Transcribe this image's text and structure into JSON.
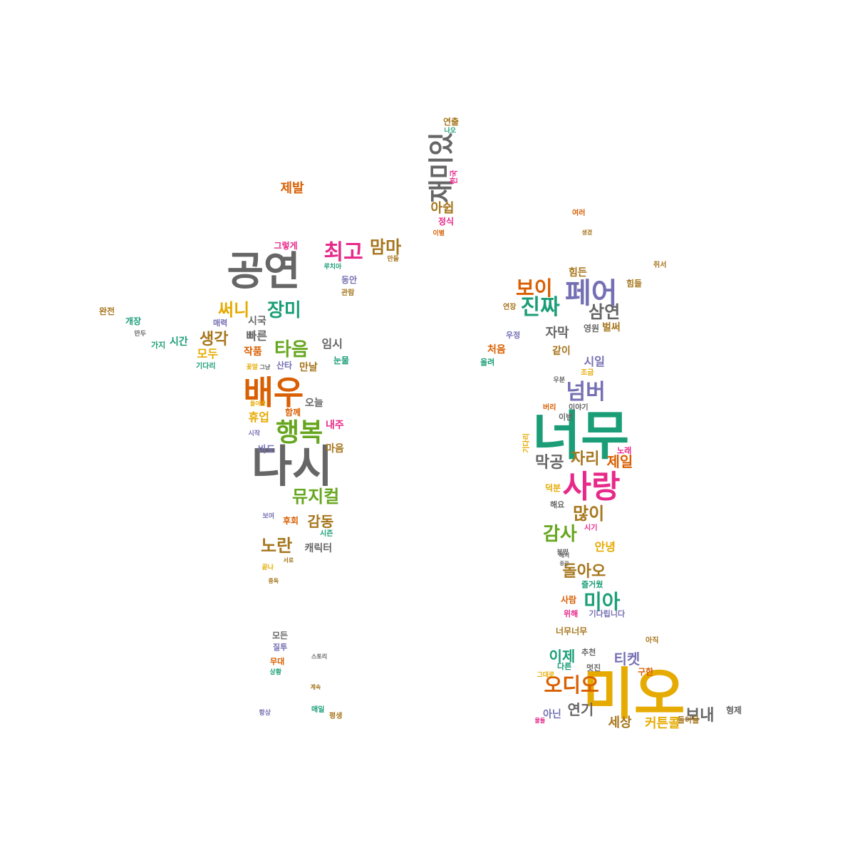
{
  "palette": {
    "teal": "#1b9e77",
    "orange": "#d95f02",
    "purple": "#7570b3",
    "pink": "#e7298a",
    "green": "#66a61e",
    "gold": "#e6ab02",
    "brown": "#a6761d",
    "gray": "#666666"
  },
  "words": [
    {
      "text": "미오",
      "color": "gold"
    },
    {
      "text": "너무",
      "color": "teal"
    },
    {
      "text": "다시",
      "color": "gray"
    },
    {
      "text": "공연",
      "color": "gray"
    },
    {
      "text": "배우",
      "color": "orange"
    },
    {
      "text": "사랑",
      "color": "pink"
    },
    {
      "text": "행복",
      "color": "green"
    },
    {
      "text": "페어",
      "color": "purple"
    },
    {
      "text": "재미있",
      "color": "gray"
    },
    {
      "text": "최고",
      "color": "pink"
    },
    {
      "text": "진짜",
      "color": "teal"
    },
    {
      "text": "보이",
      "color": "orange"
    },
    {
      "text": "삼연",
      "color": "gray"
    },
    {
      "text": "넘버",
      "color": "purple"
    },
    {
      "text": "뮤지컬",
      "color": "green"
    },
    {
      "text": "오디오",
      "color": "orange"
    },
    {
      "text": "미아",
      "color": "teal"
    },
    {
      "text": "감사",
      "color": "green"
    },
    {
      "text": "맘마",
      "color": "brown"
    },
    {
      "text": "써니",
      "color": "gold"
    },
    {
      "text": "장미",
      "color": "teal"
    },
    {
      "text": "타음",
      "color": "green"
    },
    {
      "text": "생각",
      "color": "brown"
    },
    {
      "text": "막공",
      "color": "gray"
    },
    {
      "text": "자리",
      "color": "brown"
    },
    {
      "text": "제일",
      "color": "orange"
    },
    {
      "text": "많이",
      "color": "brown"
    },
    {
      "text": "노란",
      "color": "brown"
    },
    {
      "text": "감동",
      "color": "brown"
    },
    {
      "text": "돌아오",
      "color": "brown"
    },
    {
      "text": "연기",
      "color": "gray"
    },
    {
      "text": "보내",
      "color": "gray"
    },
    {
      "text": "이제",
      "color": "teal"
    },
    {
      "text": "티켓",
      "color": "purple"
    },
    {
      "text": "세상",
      "color": "brown"
    },
    {
      "text": "커튼콜",
      "color": "gold"
    },
    {
      "text": "아닌",
      "color": "purple"
    },
    {
      "text": "제발",
      "color": "orange"
    },
    {
      "text": "아쉽",
      "color": "brown"
    },
    {
      "text": "휴업",
      "color": "gold"
    },
    {
      "text": "모두",
      "color": "gold"
    },
    {
      "text": "자막",
      "color": "gray"
    },
    {
      "text": "안녕",
      "color": "gold"
    },
    {
      "text": "시일",
      "color": "purple"
    },
    {
      "text": "임시",
      "color": "gray"
    },
    {
      "text": "만날",
      "color": "brown"
    },
    {
      "text": "내주",
      "color": "pink"
    },
    {
      "text": "마음",
      "color": "brown"
    },
    {
      "text": "오늘",
      "color": "gray"
    },
    {
      "text": "함께",
      "color": "orange"
    },
    {
      "text": "처음",
      "color": "orange"
    },
    {
      "text": "같이",
      "color": "brown"
    },
    {
      "text": "벌써",
      "color": "brown"
    },
    {
      "text": "영원",
      "color": "gray"
    },
    {
      "text": "힘든",
      "color": "brown"
    },
    {
      "text": "힘들",
      "color": "brown"
    },
    {
      "text": "캐릭터",
      "color": "gray"
    },
    {
      "text": "빠른",
      "color": "gray"
    },
    {
      "text": "작품",
      "color": "orange"
    },
    {
      "text": "시간",
      "color": "teal"
    },
    {
      "text": "개장",
      "color": "teal"
    },
    {
      "text": "완전",
      "color": "brown"
    },
    {
      "text": "가지",
      "color": "teal"
    },
    {
      "text": "매력",
      "color": "purple"
    },
    {
      "text": "시국",
      "color": "gray"
    },
    {
      "text": "눈물",
      "color": "teal"
    },
    {
      "text": "산타",
      "color": "purple"
    },
    {
      "text": "정식",
      "color": "pink"
    },
    {
      "text": "연출",
      "color": "brown"
    },
    {
      "text": "그렇게",
      "color": "pink"
    },
    {
      "text": "동안",
      "color": "purple"
    },
    {
      "text": "관람",
      "color": "brown"
    },
    {
      "text": "해요",
      "color": "gray"
    },
    {
      "text": "덕분",
      "color": "gold"
    },
    {
      "text": "노래",
      "color": "pink"
    },
    {
      "text": "시기",
      "color": "pink"
    },
    {
      "text": "이야기",
      "color": "gray"
    },
    {
      "text": "이번",
      "color": "gray"
    },
    {
      "text": "버리",
      "color": "orange"
    },
    {
      "text": "사람",
      "color": "orange"
    },
    {
      "text": "위해",
      "color": "pink"
    },
    {
      "text": "기다립니다",
      "color": "purple"
    },
    {
      "text": "즐거웠",
      "color": "teal"
    },
    {
      "text": "너무너무",
      "color": "brown"
    },
    {
      "text": "추천",
      "color": "gray"
    },
    {
      "text": "다른",
      "color": "teal"
    },
    {
      "text": "멋진",
      "color": "gray"
    },
    {
      "text": "구한",
      "color": "orange"
    },
    {
      "text": "아직",
      "color": "brown"
    },
    {
      "text": "형제",
      "color": "gray"
    },
    {
      "text": "돌아올",
      "color": "brown"
    },
    {
      "text": "후회",
      "color": "orange"
    },
    {
      "text": "시즌",
      "color": "teal"
    },
    {
      "text": "모든",
      "color": "gray"
    },
    {
      "text": "질투",
      "color": "purple"
    },
    {
      "text": "무대",
      "color": "orange"
    },
    {
      "text": "상황",
      "color": "teal"
    },
    {
      "text": "매일",
      "color": "teal"
    },
    {
      "text": "평생",
      "color": "brown"
    },
    {
      "text": "항상",
      "color": "purple"
    },
    {
      "text": "바도",
      "color": "purple"
    },
    {
      "text": "시작",
      "color": "purple"
    },
    {
      "text": "보여",
      "color": "purple"
    },
    {
      "text": "끝나",
      "color": "gold"
    },
    {
      "text": "중독",
      "color": "brown"
    },
    {
      "text": "서로",
      "color": "brown"
    },
    {
      "text": "스토리",
      "color": "gray"
    },
    {
      "text": "계속",
      "color": "brown"
    },
    {
      "text": "기다리",
      "color": "teal"
    },
    {
      "text": "우정",
      "color": "purple"
    },
    {
      "text": "연장",
      "color": "brown"
    },
    {
      "text": "올려",
      "color": "teal"
    },
    {
      "text": "우분",
      "color": "gray"
    },
    {
      "text": "조금",
      "color": "gold"
    },
    {
      "text": "여러",
      "color": "orange"
    },
    {
      "text": "생겼",
      "color": "brown"
    },
    {
      "text": "만두",
      "color": "gray"
    },
    {
      "text": "나오",
      "color": "teal"
    },
    {
      "text": "이별",
      "color": "orange"
    },
    {
      "text": "꽃말",
      "color": "gold"
    },
    {
      "text": "그냥",
      "color": "gray"
    },
    {
      "text": "만들",
      "color": "brown"
    },
    {
      "text": "루치아",
      "color": "teal"
    },
    {
      "text": "돌아왔",
      "color": "gold"
    },
    {
      "text": "그대로",
      "color": "gold"
    },
    {
      "text": "쥐서",
      "color": "brown"
    },
    {
      "text": "한국",
      "color": "pink"
    },
    {
      "text": "물들",
      "color": "pink"
    },
    {
      "text": "붕떴",
      "color": "gray"
    },
    {
      "text": "해서",
      "color": "gray"
    },
    {
      "text": "중간",
      "color": "gray"
    },
    {
      "text": "기다리",
      "color": "gold"
    }
  ]
}
